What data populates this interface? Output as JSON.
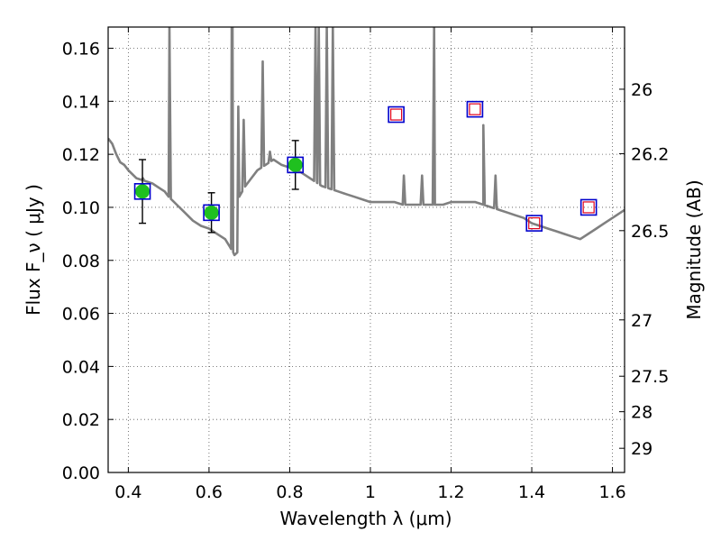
{
  "chart_data": {
    "type": "scatter",
    "xlabel": "Wavelength  λ (μm)",
    "ylabel": "Flux  F_ν  ( μJy )",
    "ylabel_right": "Magnitude (AB)",
    "xlim": [
      0.35,
      1.63
    ],
    "ylim": [
      0.0,
      0.168
    ],
    "grid": true,
    "x_ticks": [
      {
        "value": 0.4,
        "label": "0.4"
      },
      {
        "value": 0.6,
        "label": "0.6"
      },
      {
        "value": 0.8,
        "label": "0.8"
      },
      {
        "value": 1.0,
        "label": "1"
      },
      {
        "value": 1.2,
        "label": "1.2"
      },
      {
        "value": 1.4,
        "label": "1.4"
      },
      {
        "value": 1.6,
        "label": "1.6"
      }
    ],
    "y_ticks": [
      {
        "value": 0.0,
        "label": "0.00"
      },
      {
        "value": 0.02,
        "label": "0.02"
      },
      {
        "value": 0.04,
        "label": "0.04"
      },
      {
        "value": 0.06,
        "label": "0.06"
      },
      {
        "value": 0.08,
        "label": "0.08"
      },
      {
        "value": 0.1,
        "label": "0.10"
      },
      {
        "value": 0.12,
        "label": "0.12"
      },
      {
        "value": 0.14,
        "label": "0.14"
      },
      {
        "value": 0.16,
        "label": "0.16"
      }
    ],
    "right_ticks": [
      {
        "mag": 26,
        "label": "26"
      },
      {
        "mag": 26.2,
        "label": "26.2"
      },
      {
        "mag": 26.5,
        "label": "26.5"
      },
      {
        "mag": 27,
        "label": "27"
      },
      {
        "mag": 27.5,
        "label": "27.5"
      },
      {
        "mag": 28,
        "label": "28"
      },
      {
        "mag": 29,
        "label": "29"
      }
    ],
    "observed": [
      {
        "x": 0.435,
        "y": 0.106,
        "err": 0.012
      },
      {
        "x": 0.606,
        "y": 0.098,
        "err": 0.0075
      },
      {
        "x": 0.814,
        "y": 0.116,
        "err": 0.0092
      }
    ],
    "model_bands": [
      {
        "x": 0.435,
        "y": 0.106
      },
      {
        "x": 0.606,
        "y": 0.098
      },
      {
        "x": 0.814,
        "y": 0.116
      },
      {
        "x": 1.064,
        "y": 0.135
      },
      {
        "x": 1.259,
        "y": 0.137
      },
      {
        "x": 1.406,
        "y": 0.094
      },
      {
        "x": 1.541,
        "y": 0.1
      }
    ],
    "upper_limits": [
      {
        "x": 1.064,
        "y": 0.135
      },
      {
        "x": 1.259,
        "y": 0.137
      },
      {
        "x": 1.406,
        "y": 0.094
      },
      {
        "x": 1.541,
        "y": 0.1
      }
    ],
    "spectrum": [
      [
        0.35,
        0.126
      ],
      [
        0.36,
        0.124
      ],
      [
        0.37,
        0.12
      ],
      [
        0.38,
        0.117
      ],
      [
        0.39,
        0.116
      ],
      [
        0.4,
        0.114
      ],
      [
        0.42,
        0.111
      ],
      [
        0.44,
        0.11
      ],
      [
        0.46,
        0.109
      ],
      [
        0.48,
        0.107
      ],
      [
        0.49,
        0.106
      ],
      [
        0.5,
        0.104
      ],
      [
        0.52,
        0.101
      ],
      [
        0.54,
        0.098
      ],
      [
        0.56,
        0.095
      ],
      [
        0.58,
        0.093
      ],
      [
        0.6,
        0.092
      ],
      [
        0.62,
        0.09
      ],
      [
        0.64,
        0.088
      ],
      [
        0.66,
        0.083
      ],
      [
        0.663,
        0.082
      ],
      [
        0.67,
        0.083
      ],
      [
        0.675,
        0.104
      ],
      [
        0.69,
        0.108
      ],
      [
        0.7,
        0.11
      ],
      [
        0.72,
        0.114
      ],
      [
        0.74,
        0.116
      ],
      [
        0.76,
        0.118
      ],
      [
        0.78,
        0.116
      ],
      [
        0.8,
        0.115
      ],
      [
        0.82,
        0.114
      ],
      [
        0.84,
        0.112
      ],
      [
        0.86,
        0.11
      ],
      [
        0.88,
        0.108
      ],
      [
        0.9,
        0.107
      ],
      [
        0.92,
        0.106
      ],
      [
        0.94,
        0.105
      ],
      [
        0.96,
        0.104
      ],
      [
        0.98,
        0.103
      ],
      [
        1.0,
        0.102
      ],
      [
        1.02,
        0.102
      ],
      [
        1.04,
        0.102
      ],
      [
        1.06,
        0.102
      ],
      [
        1.08,
        0.101
      ],
      [
        1.1,
        0.101
      ],
      [
        1.12,
        0.101
      ],
      [
        1.14,
        0.101
      ],
      [
        1.16,
        0.101
      ],
      [
        1.18,
        0.101
      ],
      [
        1.2,
        0.102
      ],
      [
        1.22,
        0.102
      ],
      [
        1.24,
        0.102
      ],
      [
        1.26,
        0.102
      ],
      [
        1.28,
        0.101
      ],
      [
        1.3,
        0.1
      ],
      [
        1.32,
        0.099
      ],
      [
        1.34,
        0.098
      ],
      [
        1.36,
        0.097
      ],
      [
        1.38,
        0.096
      ],
      [
        1.4,
        0.094
      ],
      [
        1.42,
        0.093
      ],
      [
        1.44,
        0.092
      ],
      [
        1.46,
        0.091
      ],
      [
        1.48,
        0.09
      ],
      [
        1.5,
        0.089
      ],
      [
        1.52,
        0.088
      ],
      [
        1.54,
        0.09
      ],
      [
        1.56,
        0.092
      ],
      [
        1.58,
        0.094
      ],
      [
        1.6,
        0.096
      ],
      [
        1.62,
        0.098
      ],
      [
        1.63,
        0.099
      ]
    ],
    "emission_lines": [
      {
        "x": 0.4363,
        "peak": 0.111
      },
      {
        "x": 0.502,
        "peak": 0.168
      },
      {
        "x": 0.6583,
        "peak": 0.168
      },
      {
        "x": 0.6563,
        "peak": 0.168
      },
      {
        "x": 0.6725,
        "peak": 0.138
      },
      {
        "x": 0.686,
        "peak": 0.133
      },
      {
        "x": 0.733,
        "peak": 0.155
      },
      {
        "x": 0.751,
        "peak": 0.121
      },
      {
        "x": 0.864,
        "peak": 0.168
      },
      {
        "x": 0.872,
        "peak": 0.168
      },
      {
        "x": 0.892,
        "peak": 0.168
      },
      {
        "x": 0.907,
        "peak": 0.168
      },
      {
        "x": 1.083,
        "peak": 0.112
      },
      {
        "x": 1.128,
        "peak": 0.112
      },
      {
        "x": 1.158,
        "peak": 0.168
      },
      {
        "x": 1.28,
        "peak": 0.131
      },
      {
        "x": 1.31,
        "peak": 0.112
      }
    ],
    "colors": {
      "spectrum": "#808080",
      "observed": "#1fc01f",
      "band_box": "#0000cc",
      "limit_box": "#e0001a",
      "error_bar": "#000000",
      "grid": "#555555"
    }
  }
}
